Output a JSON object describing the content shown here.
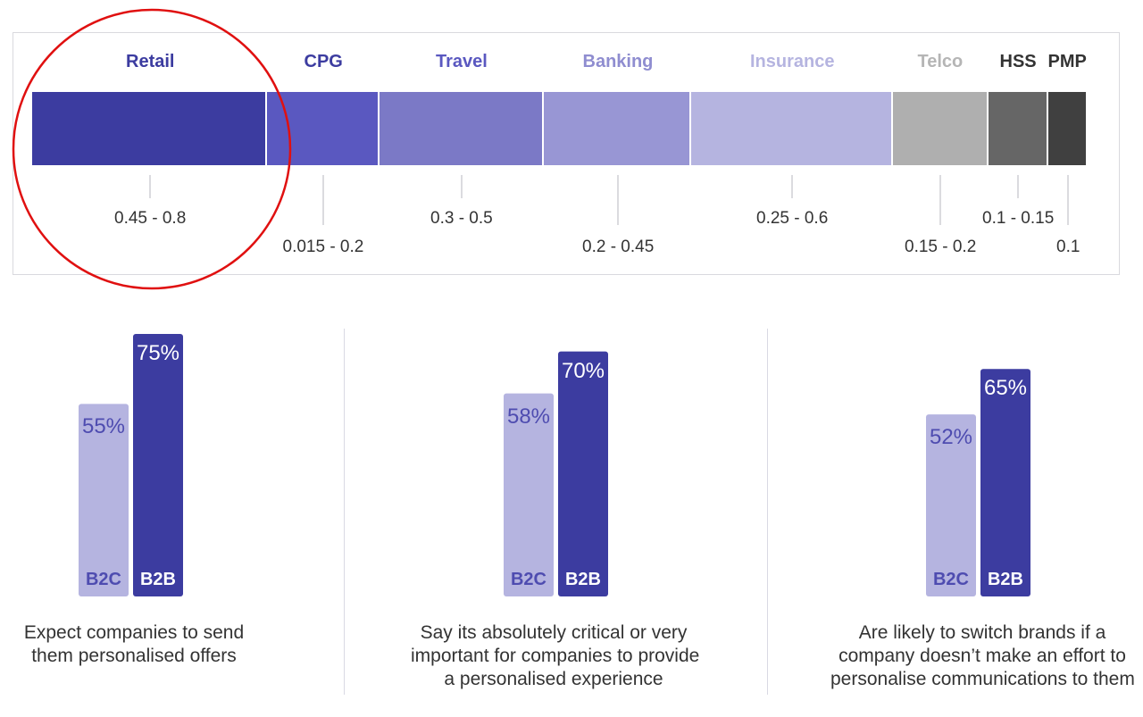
{
  "chart_data": [
    {
      "type": "bar",
      "orientation": "horizontal-stacked",
      "categories": [
        "Retail",
        "CPG",
        "Travel",
        "Banking",
        "Insurance",
        "Telco",
        "HSS",
        "PMP"
      ],
      "range_labels": [
        "0.45 - 0.8",
        "0.015 - 0.2",
        "0.3 - 0.5",
        "0.2 - 0.45",
        "0.25 - 0.6",
        "0.15 - 0.2",
        "0.1 - 0.15",
        "0.1"
      ],
      "colors": [
        "#3c3ca0",
        "#5a58c0",
        "#7b79c6",
        "#9896d4",
        "#b5b4e0",
        "#afafaf",
        "#666666",
        "#404040"
      ],
      "label_colors": [
        "#3c3ca0",
        "#3c3ca0",
        "#5a58c0",
        "#8f8dd0",
        "#b5b4e0",
        "#b5b5b5",
        "#333333",
        "#333333"
      ],
      "annotation": "circled: Retail"
    },
    {
      "type": "bar",
      "categories": [
        "B2C",
        "B2B"
      ],
      "values": [
        55,
        75
      ],
      "value_labels": [
        "55%",
        "75%"
      ],
      "caption": [
        "Expect companies to send",
        "them personalised offers"
      ]
    },
    {
      "type": "bar",
      "categories": [
        "B2C",
        "B2B"
      ],
      "values": [
        58,
        70
      ],
      "value_labels": [
        "58%",
        "70%"
      ],
      "caption": [
        "Say its absolutely critical or very",
        "important for companies to provide",
        "a personalised experience"
      ]
    },
    {
      "type": "bar",
      "categories": [
        "B2C",
        "B2B"
      ],
      "values": [
        52,
        65
      ],
      "value_labels": [
        "52%",
        "65%"
      ],
      "caption": [
        "Are likely to switch brands if a",
        "company doesn’t make an effort to",
        "personalise communications to them"
      ]
    }
  ],
  "colors": {
    "b2c_bar": "#b5b4e0",
    "b2b_bar": "#3c3ca0",
    "b2c_text": "#4e4cb0",
    "b2b_text": "#ffffff",
    "annotation_circle": "#e01010"
  }
}
